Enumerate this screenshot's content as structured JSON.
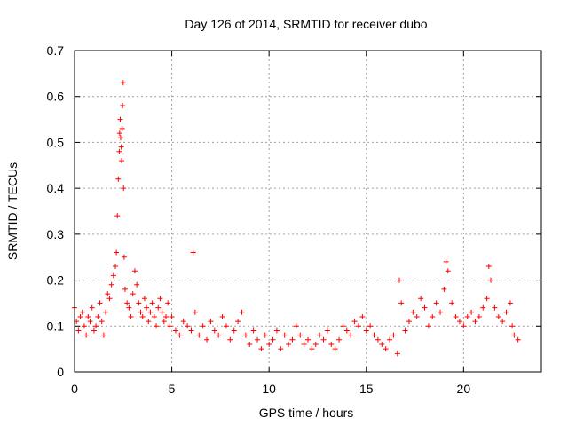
{
  "chart_data": {
    "type": "scatter",
    "title": "Day 126 of 2014, SRMTID for receiver dubo",
    "xlabel": "GPS time / hours",
    "ylabel": "SRMTID / TECUs",
    "xlim": [
      0,
      24
    ],
    "ylim": [
      0,
      0.7
    ],
    "x_ticks": [
      0,
      5,
      10,
      15,
      20
    ],
    "x_tick_labels": [
      "0",
      "5",
      "10",
      "15",
      "20"
    ],
    "y_ticks": [
      0,
      0.1,
      0.2,
      0.3,
      0.4,
      0.5,
      0.6,
      0.7
    ],
    "y_tick_labels": [
      "0",
      "0.1",
      "0.2",
      "0.3",
      "0.4",
      "0.5",
      "0.6",
      "0.7"
    ],
    "grid": true,
    "marker": "+",
    "colors": {
      "points": "#ff0000",
      "grid": "#a0a0a0",
      "axes": "#000000"
    },
    "series": [
      {
        "name": "SRMTID",
        "x": [
          0.0,
          0.1,
          0.2,
          0.3,
          0.4,
          0.5,
          0.6,
          0.7,
          0.8,
          0.9,
          1.0,
          1.1,
          1.2,
          1.3,
          1.4,
          1.5,
          1.6,
          1.7,
          1.8,
          1.9,
          2.0,
          2.1,
          2.15,
          2.2,
          2.25,
          2.3,
          2.32,
          2.35,
          2.37,
          2.4,
          2.42,
          2.45,
          2.47,
          2.5,
          2.52,
          2.55,
          2.6,
          2.7,
          2.8,
          2.9,
          3.0,
          3.1,
          3.2,
          3.3,
          3.4,
          3.5,
          3.6,
          3.7,
          3.8,
          3.9,
          4.0,
          4.1,
          4.2,
          4.3,
          4.4,
          4.5,
          4.6,
          4.7,
          4.8,
          4.9,
          5.0,
          5.2,
          5.4,
          5.6,
          5.8,
          6.0,
          6.1,
          6.2,
          6.4,
          6.6,
          6.8,
          7.0,
          7.2,
          7.4,
          7.6,
          7.8,
          8.0,
          8.2,
          8.4,
          8.6,
          8.8,
          9.0,
          9.2,
          9.4,
          9.6,
          9.8,
          10.0,
          10.2,
          10.4,
          10.6,
          10.8,
          11.0,
          11.2,
          11.4,
          11.6,
          11.8,
          12.0,
          12.2,
          12.4,
          12.6,
          12.8,
          13.0,
          13.2,
          13.4,
          13.6,
          13.8,
          14.0,
          14.2,
          14.4,
          14.6,
          14.8,
          15.0,
          15.2,
          15.4,
          15.6,
          15.8,
          16.0,
          16.2,
          16.4,
          16.6,
          16.7,
          16.8,
          17.0,
          17.2,
          17.4,
          17.6,
          17.8,
          18.0,
          18.2,
          18.4,
          18.6,
          18.8,
          19.0,
          19.1,
          19.2,
          19.4,
          19.6,
          19.8,
          20.0,
          20.2,
          20.4,
          20.6,
          20.8,
          21.0,
          21.2,
          21.3,
          21.4,
          21.6,
          21.8,
          22.0,
          22.2,
          22.4,
          22.5,
          22.6,
          22.8
        ],
        "values": [
          0.14,
          0.11,
          0.09,
          0.12,
          0.13,
          0.1,
          0.08,
          0.12,
          0.11,
          0.14,
          0.09,
          0.1,
          0.12,
          0.15,
          0.11,
          0.08,
          0.13,
          0.17,
          0.16,
          0.19,
          0.21,
          0.23,
          0.26,
          0.34,
          0.42,
          0.48,
          0.52,
          0.55,
          0.51,
          0.49,
          0.46,
          0.53,
          0.58,
          0.63,
          0.4,
          0.25,
          0.18,
          0.15,
          0.14,
          0.12,
          0.17,
          0.22,
          0.19,
          0.15,
          0.13,
          0.12,
          0.16,
          0.14,
          0.11,
          0.13,
          0.15,
          0.12,
          0.1,
          0.14,
          0.16,
          0.13,
          0.11,
          0.12,
          0.15,
          0.1,
          0.12,
          0.09,
          0.08,
          0.11,
          0.1,
          0.09,
          0.26,
          0.13,
          0.08,
          0.1,
          0.07,
          0.11,
          0.09,
          0.08,
          0.12,
          0.1,
          0.07,
          0.09,
          0.11,
          0.13,
          0.08,
          0.06,
          0.09,
          0.07,
          0.05,
          0.08,
          0.06,
          0.07,
          0.09,
          0.05,
          0.08,
          0.06,
          0.07,
          0.1,
          0.08,
          0.06,
          0.07,
          0.05,
          0.06,
          0.08,
          0.07,
          0.09,
          0.06,
          0.05,
          0.07,
          0.1,
          0.09,
          0.08,
          0.11,
          0.1,
          0.12,
          0.09,
          0.1,
          0.08,
          0.07,
          0.06,
          0.05,
          0.07,
          0.08,
          0.04,
          0.2,
          0.15,
          0.09,
          0.11,
          0.13,
          0.12,
          0.16,
          0.14,
          0.1,
          0.12,
          0.15,
          0.13,
          0.18,
          0.24,
          0.22,
          0.15,
          0.12,
          0.11,
          0.1,
          0.12,
          0.13,
          0.11,
          0.12,
          0.14,
          0.16,
          0.23,
          0.2,
          0.14,
          0.12,
          0.11,
          0.13,
          0.15,
          0.1,
          0.08,
          0.07
        ]
      }
    ]
  }
}
